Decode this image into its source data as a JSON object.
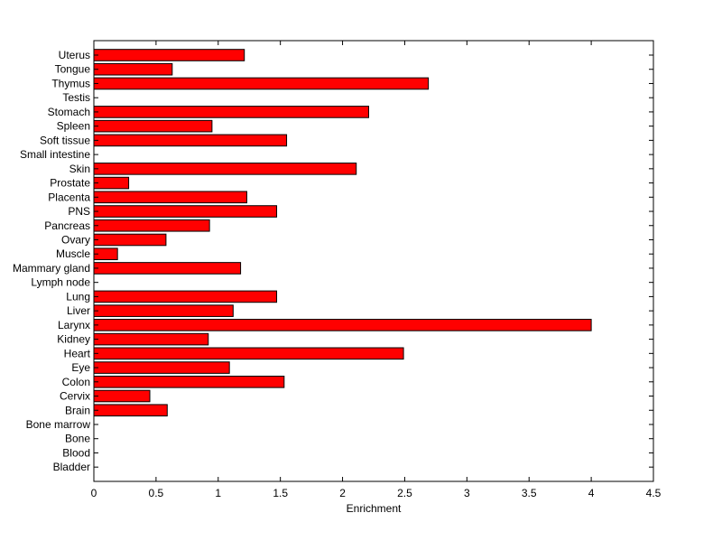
{
  "chart_data": {
    "type": "bar",
    "orientation": "horizontal",
    "xlabel": "Enrichment",
    "ylabel": "",
    "title": "",
    "xlim": [
      0,
      4.5
    ],
    "xticks": [
      "0",
      "0.5",
      "1",
      "1.5",
      "2",
      "2.5",
      "3",
      "3.5",
      "4",
      "4.5"
    ],
    "grid": false,
    "bar_color": "#ff0000",
    "edge_color": "#000000",
    "categories": [
      "Uterus",
      "Tongue",
      "Thymus",
      "Testis",
      "Stomach",
      "Spleen",
      "Soft tissue",
      "Small intestine",
      "Skin",
      "Prostate",
      "Placenta",
      "PNS",
      "Pancreas",
      "Ovary",
      "Muscle",
      "Mammary gland",
      "Lymph node",
      "Lung",
      "Liver",
      "Larynx",
      "Kidney",
      "Heart",
      "Eye",
      "Colon",
      "Cervix",
      "Brain",
      "Bone marrow",
      "Bone",
      "Blood",
      "Bladder"
    ],
    "values": [
      1.21,
      0.63,
      2.69,
      0,
      2.21,
      0.95,
      1.55,
      0,
      2.11,
      0.28,
      1.23,
      1.47,
      0.93,
      0.58,
      0.19,
      1.18,
      0,
      1.47,
      1.12,
      4.0,
      0.92,
      2.49,
      1.09,
      1.53,
      0.45,
      0.59,
      0,
      0,
      0,
      0
    ]
  }
}
